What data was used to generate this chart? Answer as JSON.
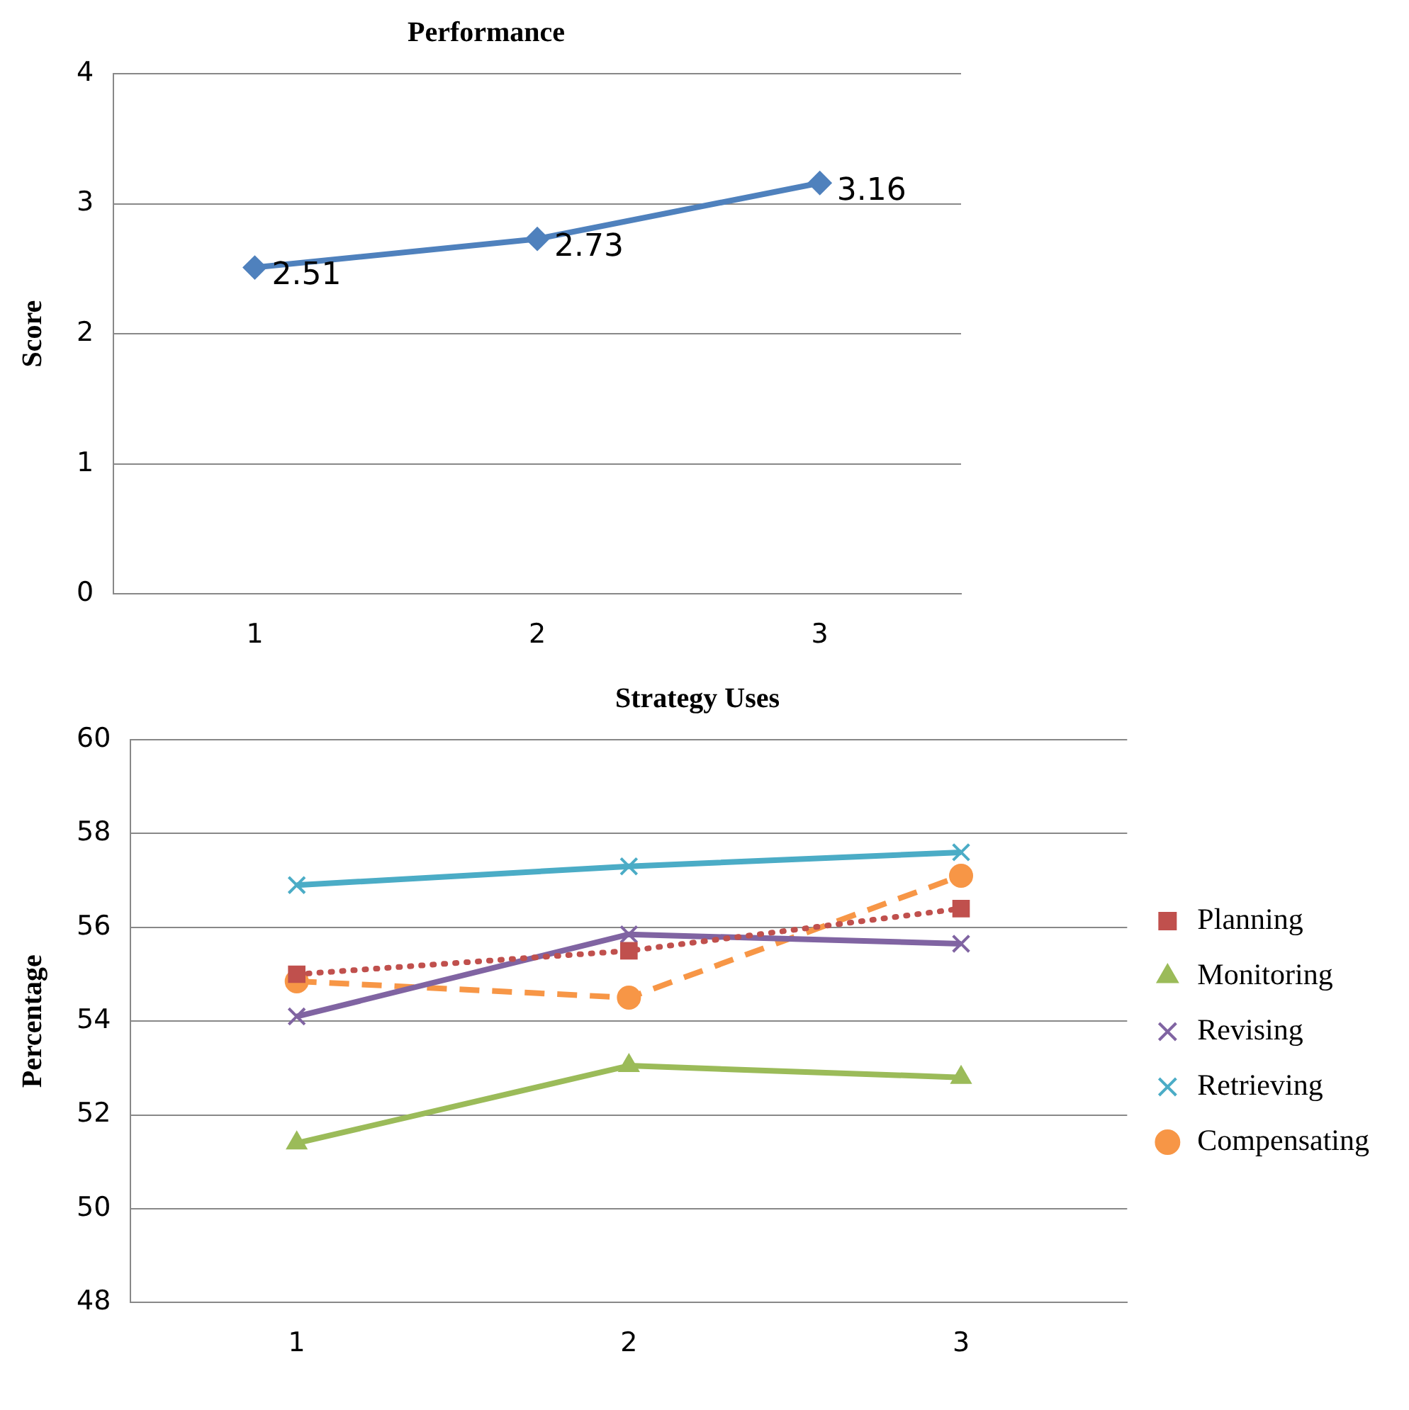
{
  "chart_data": [
    {
      "type": "line",
      "title": "Performance",
      "ylabel": "Score",
      "categories": [
        "1",
        "2",
        "3"
      ],
      "series": [
        {
          "color": "#4f81bd",
          "values": [
            2.51,
            2.73,
            3.16
          ],
          "marker": "diamond",
          "line_style": "solid"
        }
      ],
      "ylim": [
        0,
        4
      ],
      "yticks": [
        0,
        1,
        2,
        3,
        4
      ],
      "grid": "y",
      "legend": false,
      "data_labels": true
    },
    {
      "type": "line",
      "title": "Strategy Uses",
      "ylabel": "Percentage",
      "categories": [
        "1",
        "2",
        "3"
      ],
      "series": [
        {
          "name": "Planning",
          "color": "#c0504d",
          "values": [
            55.0,
            55.5,
            56.4
          ],
          "marker": "square",
          "line_style": "dotted"
        },
        {
          "name": "Monitoring",
          "color": "#9bbb59",
          "values": [
            51.4,
            53.05,
            52.8
          ],
          "marker": "triangle",
          "line_style": "solid"
        },
        {
          "name": "Revising",
          "color": "#8064a2",
          "values": [
            54.1,
            55.85,
            55.65
          ],
          "marker": "cross",
          "line_style": "solid"
        },
        {
          "name": "Retrieving",
          "color": "#4bacc6",
          "values": [
            56.9,
            57.3,
            57.6
          ],
          "marker": "cross",
          "line_style": "solid"
        },
        {
          "name": "Compensating",
          "color": "#f79646",
          "values": [
            54.85,
            54.5,
            57.1
          ],
          "marker": "circle",
          "line_style": "dashed"
        }
      ],
      "ylim": [
        48,
        60
      ],
      "yticks": [
        48,
        50,
        52,
        54,
        56,
        58,
        60
      ],
      "grid": "y",
      "legend": "right"
    }
  ]
}
